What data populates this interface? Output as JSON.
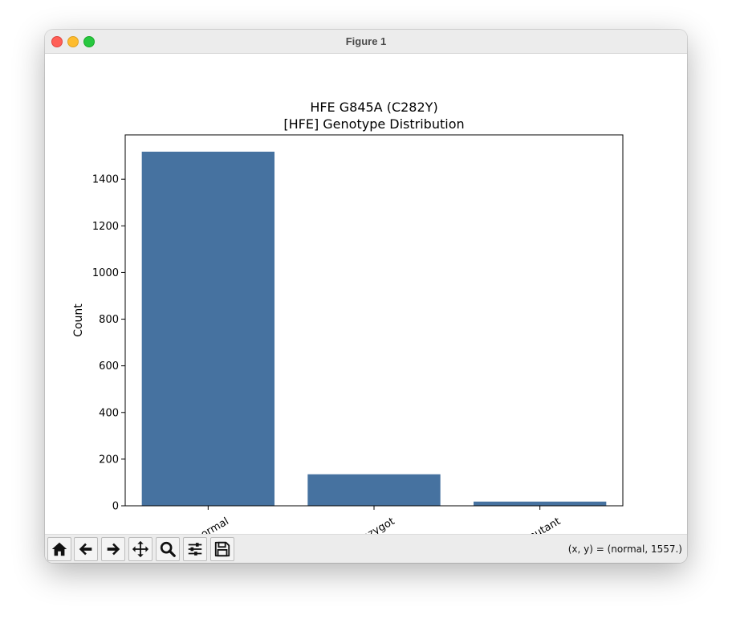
{
  "window": {
    "title": "Figure 1"
  },
  "chart_data": {
    "type": "bar",
    "title": "HFE G845A (C282Y)",
    "subtitle": "[HFE] Genotype Distribution",
    "xlabel": "",
    "ylabel": "Count",
    "categories": [
      "normal",
      "heterozygot",
      "mutant"
    ],
    "values": [
      1518,
      135,
      18
    ],
    "ylim": [
      0,
      1590
    ],
    "yticks": [
      0,
      200,
      400,
      600,
      800,
      1000,
      1200,
      1400
    ],
    "xtick_rotation": 30,
    "grid": false,
    "legend": "none",
    "bar_color": "#4672a0"
  },
  "toolbar": {
    "buttons": [
      {
        "name": "home-button",
        "icon": "home-icon"
      },
      {
        "name": "back-button",
        "icon": "arrow-left-icon"
      },
      {
        "name": "forward-button",
        "icon": "arrow-right-icon"
      },
      {
        "name": "pan-button",
        "icon": "move-icon"
      },
      {
        "name": "zoom-button",
        "icon": "magnifier-icon"
      },
      {
        "name": "configure-subplots-button",
        "icon": "sliders-icon"
      },
      {
        "name": "save-button",
        "icon": "floppy-disk-icon"
      }
    ],
    "coords": "(x, y) = (normal, 1557.)"
  }
}
